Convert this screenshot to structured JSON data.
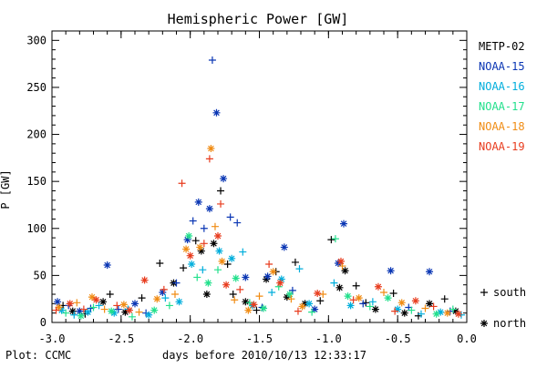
{
  "chart_data": {
    "type": "scatter",
    "title": "Hemispheric Power [GW]",
    "xlabel": "days before 2010/10/13 12:33:17",
    "ylabel": "P [GW]",
    "xlim": [
      -3.0,
      0.0
    ],
    "ylim": [
      0,
      310
    ],
    "x_ticks": [
      "-3.0",
      "-2.5",
      "-2.0",
      "-1.5",
      "-1.0",
      "-0.5",
      "0.0"
    ],
    "y_ticks": [
      "0",
      "50",
      "100",
      "150",
      "200",
      "250",
      "300"
    ],
    "grid": false,
    "legend_placement": "right",
    "credit": "Plot: CCMC",
    "marker_legend": [
      {
        "symbol": "+",
        "label": "south"
      },
      {
        "symbol": "*",
        "label": "north"
      }
    ],
    "series": [
      {
        "name": "METP-02",
        "color": "#000000",
        "points": [
          {
            "x": -2.92,
            "y": 18,
            "m": "+"
          },
          {
            "x": -2.85,
            "y": 12,
            "m": "*"
          },
          {
            "x": -2.76,
            "y": 9,
            "m": "+"
          },
          {
            "x": -2.63,
            "y": 22,
            "m": "*"
          },
          {
            "x": -2.58,
            "y": 30,
            "m": "+"
          },
          {
            "x": -2.47,
            "y": 11,
            "m": "*"
          },
          {
            "x": -2.35,
            "y": 26,
            "m": "+"
          },
          {
            "x": -2.22,
            "y": 63,
            "m": "+"
          },
          {
            "x": -2.12,
            "y": 42,
            "m": "*"
          },
          {
            "x": -2.05,
            "y": 58,
            "m": "+"
          },
          {
            "x": -1.96,
            "y": 87,
            "m": "+"
          },
          {
            "x": -1.92,
            "y": 76,
            "m": "*"
          },
          {
            "x": -1.88,
            "y": 30,
            "m": "*"
          },
          {
            "x": -1.83,
            "y": 84,
            "m": "*"
          },
          {
            "x": -1.78,
            "y": 140,
            "m": "+"
          },
          {
            "x": -1.73,
            "y": 62,
            "m": "+"
          },
          {
            "x": -1.69,
            "y": 30,
            "m": "+"
          },
          {
            "x": -1.6,
            "y": 22,
            "m": "*"
          },
          {
            "x": -1.52,
            "y": 13,
            "m": "+"
          },
          {
            "x": -1.45,
            "y": 46,
            "m": "*"
          },
          {
            "x": -1.38,
            "y": 54,
            "m": "+"
          },
          {
            "x": -1.3,
            "y": 27,
            "m": "*"
          },
          {
            "x": -1.24,
            "y": 64,
            "m": "+"
          },
          {
            "x": -1.17,
            "y": 20,
            "m": "*"
          },
          {
            "x": -1.06,
            "y": 23,
            "m": "+"
          },
          {
            "x": -0.98,
            "y": 88,
            "m": "+"
          },
          {
            "x": -0.92,
            "y": 37,
            "m": "*"
          },
          {
            "x": -0.88,
            "y": 55,
            "m": "*"
          },
          {
            "x": -0.8,
            "y": 39,
            "m": "+"
          },
          {
            "x": -0.73,
            "y": 21,
            "m": "+"
          },
          {
            "x": -0.66,
            "y": 14,
            "m": "*"
          },
          {
            "x": -0.53,
            "y": 31,
            "m": "+"
          },
          {
            "x": -0.45,
            "y": 10,
            "m": "*"
          },
          {
            "x": -0.35,
            "y": 7,
            "m": "+"
          },
          {
            "x": -0.27,
            "y": 20,
            "m": "*"
          },
          {
            "x": -0.16,
            "y": 25,
            "m": "+"
          },
          {
            "x": -0.08,
            "y": 12,
            "m": "*"
          }
        ]
      },
      {
        "name": "NOAA-15",
        "color": "#0a36b4",
        "points": [
          {
            "x": -2.96,
            "y": 22,
            "m": "*"
          },
          {
            "x": -2.88,
            "y": 18,
            "m": "+"
          },
          {
            "x": -2.8,
            "y": 12,
            "m": "*"
          },
          {
            "x": -2.72,
            "y": 15,
            "m": "+"
          },
          {
            "x": -2.6,
            "y": 61,
            "m": "*"
          },
          {
            "x": -2.52,
            "y": 14,
            "m": "+"
          },
          {
            "x": -2.4,
            "y": 20,
            "m": "*"
          },
          {
            "x": -2.32,
            "y": 10,
            "m": "+"
          },
          {
            "x": -2.2,
            "y": 32,
            "m": "*"
          },
          {
            "x": -2.1,
            "y": 42,
            "m": "+"
          },
          {
            "x": -2.02,
            "y": 88,
            "m": "*"
          },
          {
            "x": -1.98,
            "y": 108,
            "m": "+"
          },
          {
            "x": -1.94,
            "y": 128,
            "m": "*"
          },
          {
            "x": -1.9,
            "y": 100,
            "m": "+"
          },
          {
            "x": -1.86,
            "y": 121,
            "m": "*"
          },
          {
            "x": -1.84,
            "y": 279,
            "m": "+"
          },
          {
            "x": -1.81,
            "y": 223,
            "m": "*"
          },
          {
            "x": -1.76,
            "y": 153,
            "m": "*"
          },
          {
            "x": -1.71,
            "y": 112,
            "m": "+"
          },
          {
            "x": -1.66,
            "y": 106,
            "m": "+"
          },
          {
            "x": -1.6,
            "y": 48,
            "m": "*"
          },
          {
            "x": -1.48,
            "y": 16,
            "m": "+"
          },
          {
            "x": -1.44,
            "y": 49,
            "m": "*"
          },
          {
            "x": -1.32,
            "y": 80,
            "m": "*"
          },
          {
            "x": -1.26,
            "y": 34,
            "m": "+"
          },
          {
            "x": -1.1,
            "y": 14,
            "m": "*"
          },
          {
            "x": -0.93,
            "y": 63,
            "m": "*"
          },
          {
            "x": -0.89,
            "y": 105,
            "m": "*"
          },
          {
            "x": -0.75,
            "y": 20,
            "m": "+"
          },
          {
            "x": -0.55,
            "y": 55,
            "m": "*"
          },
          {
            "x": -0.42,
            "y": 16,
            "m": "+"
          },
          {
            "x": -0.27,
            "y": 54,
            "m": "*"
          },
          {
            "x": -0.12,
            "y": 12,
            "m": "+"
          }
        ]
      },
      {
        "name": "NOAA-16",
        "color": "#00aedc",
        "points": [
          {
            "x": -2.93,
            "y": 13,
            "m": "*"
          },
          {
            "x": -2.84,
            "y": 8,
            "m": "+"
          },
          {
            "x": -2.74,
            "y": 11,
            "m": "*"
          },
          {
            "x": -2.66,
            "y": 18,
            "m": "+"
          },
          {
            "x": -2.55,
            "y": 10,
            "m": "*"
          },
          {
            "x": -2.45,
            "y": 14,
            "m": "+"
          },
          {
            "x": -2.3,
            "y": 8,
            "m": "*"
          },
          {
            "x": -2.18,
            "y": 26,
            "m": "+"
          },
          {
            "x": -2.08,
            "y": 22,
            "m": "*"
          },
          {
            "x": -1.99,
            "y": 62,
            "m": "*"
          },
          {
            "x": -1.91,
            "y": 56,
            "m": "+"
          },
          {
            "x": -1.79,
            "y": 76,
            "m": "*"
          },
          {
            "x": -1.7,
            "y": 68,
            "m": "*"
          },
          {
            "x": -1.62,
            "y": 75,
            "m": "+"
          },
          {
            "x": -1.55,
            "y": 18,
            "m": "*"
          },
          {
            "x": -1.41,
            "y": 32,
            "m": "+"
          },
          {
            "x": -1.34,
            "y": 46,
            "m": "*"
          },
          {
            "x": -1.21,
            "y": 57,
            "m": "+"
          },
          {
            "x": -1.14,
            "y": 20,
            "m": "*"
          },
          {
            "x": -0.96,
            "y": 42,
            "m": "+"
          },
          {
            "x": -0.84,
            "y": 18,
            "m": "*"
          },
          {
            "x": -0.68,
            "y": 22,
            "m": "+"
          },
          {
            "x": -0.5,
            "y": 14,
            "m": "*"
          },
          {
            "x": -0.33,
            "y": 9,
            "m": "+"
          },
          {
            "x": -0.19,
            "y": 11,
            "m": "*"
          },
          {
            "x": -0.04,
            "y": 8,
            "m": "+"
          }
        ]
      },
      {
        "name": "NOAA-17",
        "color": "#22e08c",
        "points": [
          {
            "x": -2.9,
            "y": 10,
            "m": "+"
          },
          {
            "x": -2.79,
            "y": 7,
            "m": "*"
          },
          {
            "x": -2.7,
            "y": 16,
            "m": "+"
          },
          {
            "x": -2.57,
            "y": 12,
            "m": "*"
          },
          {
            "x": -2.42,
            "y": 6,
            "m": "+"
          },
          {
            "x": -2.26,
            "y": 13,
            "m": "*"
          },
          {
            "x": -2.15,
            "y": 18,
            "m": "+"
          },
          {
            "x": -2.01,
            "y": 92,
            "m": "*"
          },
          {
            "x": -1.95,
            "y": 48,
            "m": "+"
          },
          {
            "x": -1.87,
            "y": 42,
            "m": "*"
          },
          {
            "x": -1.8,
            "y": 56,
            "m": "+"
          },
          {
            "x": -1.67,
            "y": 47,
            "m": "*"
          },
          {
            "x": -1.57,
            "y": 21,
            "m": "+"
          },
          {
            "x": -1.47,
            "y": 15,
            "m": "*"
          },
          {
            "x": -1.36,
            "y": 38,
            "m": "+"
          },
          {
            "x": -1.28,
            "y": 30,
            "m": "*"
          },
          {
            "x": -1.12,
            "y": 11,
            "m": "+"
          },
          {
            "x": -0.95,
            "y": 89,
            "m": "+"
          },
          {
            "x": -0.86,
            "y": 28,
            "m": "*"
          },
          {
            "x": -0.7,
            "y": 17,
            "m": "+"
          },
          {
            "x": -0.57,
            "y": 26,
            "m": "*"
          },
          {
            "x": -0.4,
            "y": 13,
            "m": "+"
          },
          {
            "x": -0.22,
            "y": 9,
            "m": "*"
          },
          {
            "x": -0.1,
            "y": 14,
            "m": "+"
          }
        ]
      },
      {
        "name": "NOAA-18",
        "color": "#f08c14",
        "points": [
          {
            "x": -2.95,
            "y": 16,
            "m": "*"
          },
          {
            "x": -2.82,
            "y": 21,
            "m": "+"
          },
          {
            "x": -2.71,
            "y": 27,
            "m": "*"
          },
          {
            "x": -2.62,
            "y": 14,
            "m": "+"
          },
          {
            "x": -2.48,
            "y": 19,
            "m": "*"
          },
          {
            "x": -2.37,
            "y": 11,
            "m": "+"
          },
          {
            "x": -2.24,
            "y": 25,
            "m": "*"
          },
          {
            "x": -2.11,
            "y": 30,
            "m": "+"
          },
          {
            "x": -2.03,
            "y": 78,
            "m": "*"
          },
          {
            "x": -1.93,
            "y": 80,
            "m": "*"
          },
          {
            "x": -1.85,
            "y": 185,
            "m": "*"
          },
          {
            "x": -1.82,
            "y": 102,
            "m": "+"
          },
          {
            "x": -1.77,
            "y": 65,
            "m": "*"
          },
          {
            "x": -1.68,
            "y": 24,
            "m": "+"
          },
          {
            "x": -1.58,
            "y": 13,
            "m": "*"
          },
          {
            "x": -1.5,
            "y": 28,
            "m": "+"
          },
          {
            "x": -1.4,
            "y": 54,
            "m": "*"
          },
          {
            "x": -1.27,
            "y": 25,
            "m": "+"
          },
          {
            "x": -1.19,
            "y": 17,
            "m": "*"
          },
          {
            "x": -1.04,
            "y": 30,
            "m": "+"
          },
          {
            "x": -0.9,
            "y": 60,
            "m": "+"
          },
          {
            "x": -0.78,
            "y": 26,
            "m": "*"
          },
          {
            "x": -0.6,
            "y": 32,
            "m": "+"
          },
          {
            "x": -0.47,
            "y": 21,
            "m": "*"
          },
          {
            "x": -0.3,
            "y": 15,
            "m": "+"
          },
          {
            "x": -0.14,
            "y": 10,
            "m": "*"
          }
        ]
      },
      {
        "name": "NOAA-19",
        "color": "#e83c1e",
        "points": [
          {
            "x": -2.97,
            "y": 13,
            "m": "+"
          },
          {
            "x": -2.87,
            "y": 20,
            "m": "*"
          },
          {
            "x": -2.77,
            "y": 14,
            "m": "+"
          },
          {
            "x": -2.68,
            "y": 24,
            "m": "*"
          },
          {
            "x": -2.53,
            "y": 18,
            "m": "+"
          },
          {
            "x": -2.44,
            "y": 13,
            "m": "*"
          },
          {
            "x": -2.33,
            "y": 45,
            "m": "*"
          },
          {
            "x": -2.19,
            "y": 35,
            "m": "+"
          },
          {
            "x": -2.06,
            "y": 148,
            "m": "+"
          },
          {
            "x": -2.0,
            "y": 71,
            "m": "*"
          },
          {
            "x": -1.9,
            "y": 84,
            "m": "+"
          },
          {
            "x": -1.86,
            "y": 174,
            "m": "+"
          },
          {
            "x": -1.8,
            "y": 92,
            "m": "*"
          },
          {
            "x": -1.78,
            "y": 126,
            "m": "+"
          },
          {
            "x": -1.74,
            "y": 40,
            "m": "*"
          },
          {
            "x": -1.64,
            "y": 35,
            "m": "+"
          },
          {
            "x": -1.54,
            "y": 19,
            "m": "*"
          },
          {
            "x": -1.43,
            "y": 62,
            "m": "+"
          },
          {
            "x": -1.35,
            "y": 42,
            "m": "*"
          },
          {
            "x": -1.22,
            "y": 12,
            "m": "+"
          },
          {
            "x": -1.08,
            "y": 31,
            "m": "*"
          },
          {
            "x": -0.91,
            "y": 65,
            "m": "*"
          },
          {
            "x": -0.82,
            "y": 24,
            "m": "+"
          },
          {
            "x": -0.64,
            "y": 38,
            "m": "*"
          },
          {
            "x": -0.52,
            "y": 12,
            "m": "+"
          },
          {
            "x": -0.37,
            "y": 23,
            "m": "*"
          },
          {
            "x": -0.24,
            "y": 17,
            "m": "+"
          },
          {
            "x": -0.06,
            "y": 9,
            "m": "*"
          }
        ]
      }
    ]
  }
}
